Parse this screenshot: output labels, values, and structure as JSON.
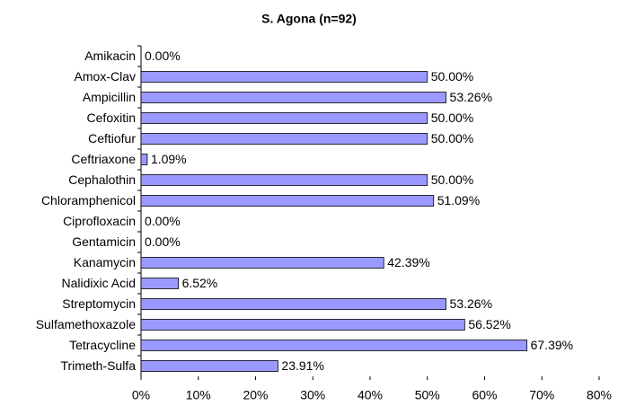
{
  "chart_data": {
    "type": "hbar",
    "title": "S. Agona (n=92)",
    "categories": [
      "Amikacin",
      "Amox-Clav",
      "Ampicillin",
      "Cefoxitin",
      "Ceftiofur",
      "Ceftriaxone",
      "Cephalothin",
      "Chloramphenicol",
      "Ciprofloxacin",
      "Gentamicin",
      "Kanamycin",
      "Nalidixic Acid",
      "Streptomycin",
      "Sulfamethoxazole",
      "Tetracycline",
      "Trimeth-Sulfa"
    ],
    "values": [
      0,
      50,
      53.26,
      50,
      50,
      1.09,
      50,
      51.09,
      0,
      0,
      42.39,
      6.52,
      53.26,
      56.52,
      67.39,
      23.91
    ],
    "value_labels": [
      "0.00%",
      "50.00%",
      "53.26%",
      "50.00%",
      "50.00%",
      "1.09%",
      "50.00%",
      "51.09%",
      "0.00%",
      "0.00%",
      "42.39%",
      "6.52%",
      "53.26%",
      "56.52%",
      "67.39%",
      "23.91%"
    ],
    "color": "#9999ff",
    "xlim": [
      0,
      80
    ],
    "xticks": [
      {
        "value": 0,
        "label": "0%"
      },
      {
        "value": 10,
        "label": "10%"
      },
      {
        "value": 20,
        "label": "20%"
      },
      {
        "value": 30,
        "label": "30%"
      },
      {
        "value": 40,
        "label": "40%"
      },
      {
        "value": 50,
        "label": "50%"
      },
      {
        "value": 60,
        "label": "60%"
      },
      {
        "value": 70,
        "label": "70%"
      },
      {
        "value": 80,
        "label": "80%"
      }
    ],
    "grid": false
  }
}
